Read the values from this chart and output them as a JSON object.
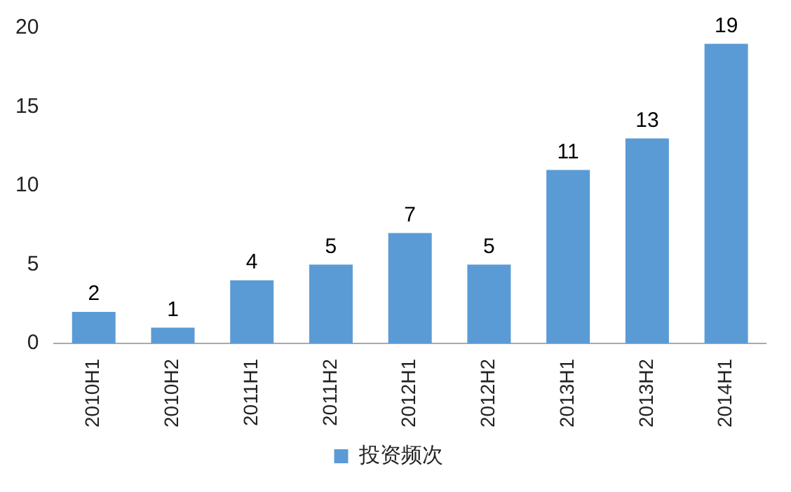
{
  "chart_data": {
    "type": "bar",
    "categories": [
      "2010H1",
      "2010H2",
      "2011H1",
      "2011H2",
      "2012H1",
      "2012H2",
      "2013H1",
      "2013H2",
      "2014H1"
    ],
    "series": [
      {
        "name": "投资频次",
        "color": "#5b9bd5",
        "values": [
          2,
          1,
          4,
          5,
          7,
          5,
          11,
          13,
          19
        ]
      }
    ],
    "ylim": [
      0,
      20
    ],
    "yticks": [
      0,
      5,
      10,
      15,
      20
    ],
    "grid": false,
    "legend": "bottom",
    "data_labels": true
  }
}
